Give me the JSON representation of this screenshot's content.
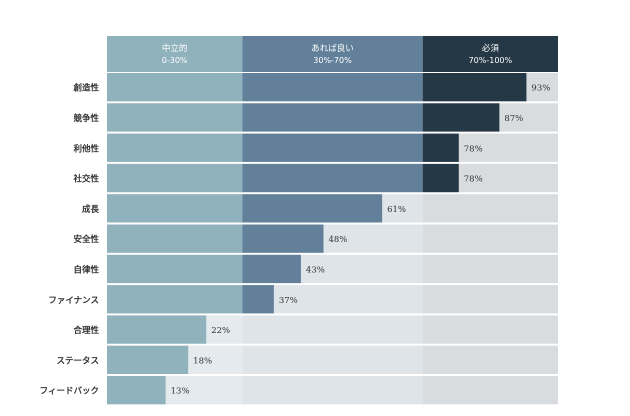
{
  "chart_data": {
    "type": "bar",
    "orientation": "horizontal",
    "xlim": [
      0,
      100
    ],
    "bands": [
      {
        "label": "中立的",
        "range_label": "0-30%",
        "from": 0,
        "to": 30,
        "head_color": "#8fb2bd",
        "track_color": "#e4eaed",
        "bar_color": "#8fb2bd"
      },
      {
        "label": "あれば良い",
        "range_label": "30%-70%",
        "from": 30,
        "to": 70,
        "head_color": "#62809a",
        "track_color": "#dfe4e8",
        "bar_color": "#62809a"
      },
      {
        "label": "必須",
        "range_label": "70%-100%",
        "from": 70,
        "to": 100,
        "head_color": "#253846",
        "track_color": "#d9dcdf",
        "bar_color": "#253846"
      }
    ],
    "categories": [
      "創造性",
      "競争性",
      "利他性",
      "社交性",
      "成長",
      "安全性",
      "自律性",
      "ファイナンス",
      "合理性",
      "ステータス",
      "フィードバック"
    ],
    "values": [
      93,
      87,
      78,
      78,
      61,
      48,
      43,
      37,
      22,
      18,
      13
    ],
    "value_labels": [
      "93%",
      "87%",
      "78%",
      "78%",
      "61%",
      "48%",
      "43%",
      "37%",
      "22%",
      "18%",
      "13%"
    ]
  }
}
